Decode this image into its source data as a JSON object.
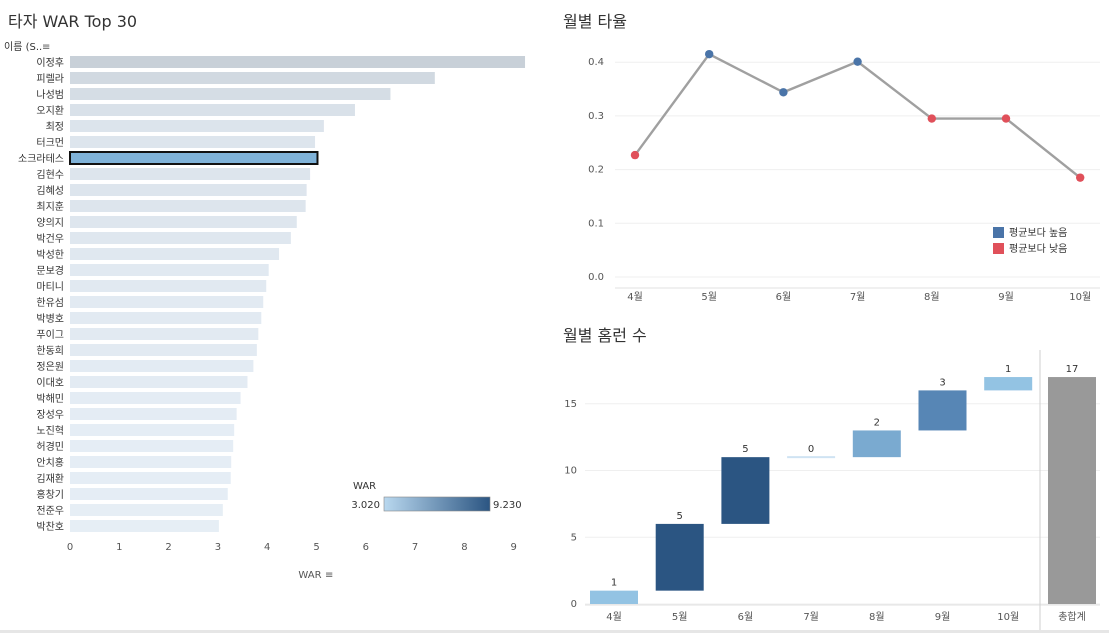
{
  "titles": {
    "war": "타자 WAR Top 30",
    "avg": "월별 타율",
    "hr": "월별 홈런 수"
  },
  "war_panel": {
    "row_header": "이름 (S..",
    "axis_title": "WAR",
    "color_legend": {
      "title": "WAR",
      "min_label": "3.020",
      "max_label": "9.230",
      "color_low": "#b9d8ef",
      "color_high": "#2b5582"
    },
    "highlight_fill": "#7fb2d8",
    "bar_color_base": "#dce6ef"
  },
  "avg_panel": {
    "legend": [
      {
        "label": "평균보다 높음",
        "color": "#4a74a8"
      },
      {
        "label": "평균보다 낮음",
        "color": "#e0505a"
      }
    ]
  },
  "hr_panel": {
    "total_label": "총합계",
    "total_color": "#999999"
  },
  "chart_data": [
    {
      "type": "bar",
      "orientation": "horizontal",
      "title": "타자 WAR Top 30",
      "xlabel": "WAR",
      "xlim": [
        0,
        9.5
      ],
      "xticks": [
        0,
        1,
        2,
        3,
        4,
        5,
        6,
        7,
        8,
        9
      ],
      "categories": [
        "이정후",
        "피렐라",
        "나성범",
        "오지환",
        "최정",
        "터크먼",
        "소크라테스",
        "김현수",
        "김혜성",
        "최지훈",
        "양의지",
        "박건우",
        "박성한",
        "문보경",
        "마티니",
        "한유섬",
        "박병호",
        "푸이그",
        "한동희",
        "정은원",
        "이대호",
        "박해민",
        "장성우",
        "노진혁",
        "허경민",
        "안치홍",
        "김재환",
        "홍창기",
        "전준우",
        "박찬호"
      ],
      "values": [
        9.23,
        7.4,
        6.5,
        5.78,
        5.15,
        4.97,
        5.02,
        4.87,
        4.8,
        4.78,
        4.6,
        4.48,
        4.24,
        4.03,
        3.98,
        3.92,
        3.88,
        3.82,
        3.79,
        3.72,
        3.6,
        3.46,
        3.38,
        3.33,
        3.31,
        3.27,
        3.26,
        3.2,
        3.1,
        3.02
      ],
      "highlighted": "소크라테스"
    },
    {
      "type": "line",
      "title": "월별 타율",
      "categories": [
        "4월",
        "5월",
        "6월",
        "7월",
        "8월",
        "9월",
        "10월"
      ],
      "values": [
        0.227,
        0.415,
        0.344,
        0.401,
        0.295,
        0.295,
        0.185
      ],
      "above_average": [
        false,
        true,
        true,
        true,
        false,
        false,
        false
      ],
      "ylim": [
        0,
        0.44
      ],
      "yticks": [
        "0.0",
        "0.1",
        "0.2",
        "0.3",
        "0.4"
      ],
      "line_color": "#a0a0a0"
    },
    {
      "type": "waterfall",
      "title": "월별 홈런 수",
      "categories": [
        "4월",
        "5월",
        "6월",
        "7월",
        "8월",
        "9월",
        "10월"
      ],
      "values": [
        1,
        5,
        5,
        0,
        2,
        3,
        1
      ],
      "colors": [
        "#93c3e3",
        "#2b5582",
        "#2b5582",
        "#cfe3f3",
        "#7aaad0",
        "#5786b5",
        "#93c3e3"
      ],
      "total": 17,
      "ylim": [
        0,
        18
      ],
      "yticks": [
        0,
        5,
        10,
        15
      ]
    }
  ]
}
